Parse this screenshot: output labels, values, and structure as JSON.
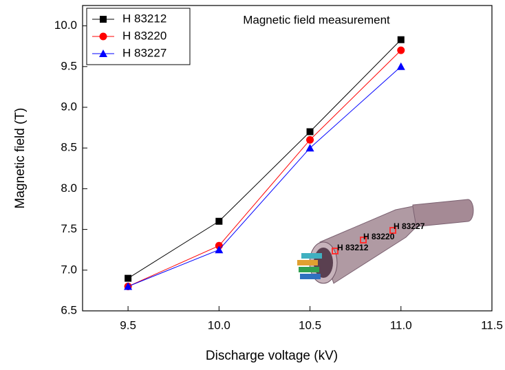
{
  "chart_data": {
    "type": "line",
    "title": "Magnetic field measurement",
    "x_label": "Discharge voltage (kV)",
    "y_label": "Magnetic field (T)",
    "x": [
      9.5,
      10,
      10.5,
      11
    ],
    "series": [
      {
        "name": "H 83212",
        "color": "#000000",
        "marker": "square",
        "values": [
          6.9,
          7.6,
          8.7,
          9.83
        ]
      },
      {
        "name": "H 83220",
        "color": "#ff0000",
        "marker": "circle",
        "values": [
          6.8,
          7.3,
          8.6,
          9.7
        ]
      },
      {
        "name": "H 83227",
        "color": "#0000ff",
        "marker": "triangle",
        "values": [
          6.8,
          7.25,
          8.5,
          9.5
        ]
      }
    ],
    "xlim": [
      9.25,
      11.5
    ],
    "xticks": [
      9.5,
      {
        "value": 10,
        "label": "10.0"
      },
      10.5,
      {
        "value": 11,
        "label": "11.0"
      },
      11.5
    ],
    "ylim": [
      6.5,
      10.25
    ],
    "yticks": [
      6.5,
      {
        "value": 7,
        "label": "7.0"
      },
      7.5,
      {
        "value": 8,
        "label": "8.0"
      },
      8.5,
      {
        "value": 9,
        "label": "9.0"
      },
      9.5,
      {
        "value": 10,
        "label": "10.0"
      }
    ],
    "legend": "top-left",
    "inset": {
      "labels": [
        "H 83212",
        "H 83220",
        "H 83227"
      ]
    }
  }
}
